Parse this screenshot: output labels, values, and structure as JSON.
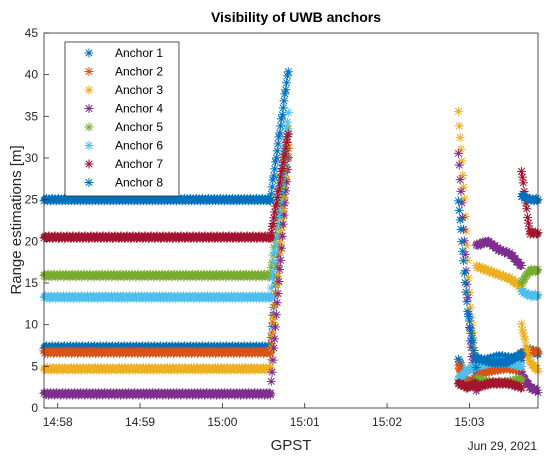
{
  "chart_data": {
    "type": "scatter",
    "title": "Visibility of UWB anchors",
    "xlabel": "GPST",
    "ylabel": "Range estimations [m]",
    "date_note": "Jun 29, 2021",
    "x_ticks": [
      "14:58",
      "14:59",
      "15:00",
      "15:01",
      "15:02",
      "15:03"
    ],
    "x_range": [
      "14:57:50",
      "15:03:50"
    ],
    "y_ticks": [
      0,
      5,
      10,
      15,
      20,
      25,
      30,
      35,
      40,
      45
    ],
    "ylim": [
      0,
      45
    ],
    "marker": "asterisk",
    "legend_position": "top-left",
    "grid": false,
    "series": [
      {
        "name": "Anchor 1",
        "color": "#0072BD",
        "segments": [
          {
            "start": "14:57:50",
            "end": "15:00:35",
            "values": [
              7.3,
              7.3
            ]
          },
          {
            "start": "15:00:35",
            "end": "15:00:48",
            "values": [
              7.3,
              33.0
            ]
          },
          {
            "start": "15:02:52",
            "end": "15:03:05",
            "values": [
              6.0,
              2.5,
              3.2
            ]
          },
          {
            "start": "15:03:05",
            "end": "15:03:38",
            "values": [
              5.5,
              5.8,
              6.2,
              6.0,
              5.8
            ]
          },
          {
            "start": "15:03:38",
            "end": "15:03:50",
            "values": [
              6.5,
              7.0,
              6.5
            ]
          }
        ]
      },
      {
        "name": "Anchor 2",
        "color": "#D95319",
        "segments": [
          {
            "start": "14:57:50",
            "end": "15:00:35",
            "values": [
              6.7,
              6.7
            ]
          },
          {
            "start": "15:00:35",
            "end": "15:00:48",
            "values": [
              6.7,
              31.0
            ]
          },
          {
            "start": "15:02:52",
            "end": "15:03:05",
            "values": [
              5.0,
              3.0,
              3.5
            ]
          },
          {
            "start": "15:03:05",
            "end": "15:03:38",
            "values": [
              4.0,
              4.5,
              4.8,
              4.5
            ]
          },
          {
            "start": "15:03:38",
            "end": "15:03:50",
            "values": [
              6.5,
              6.8,
              6.8
            ]
          }
        ]
      },
      {
        "name": "Anchor 3",
        "color": "#EDB120",
        "segments": [
          {
            "start": "14:57:50",
            "end": "15:00:35",
            "values": [
              4.7,
              4.7
            ]
          },
          {
            "start": "15:00:35",
            "end": "15:00:48",
            "values": [
              4.7,
              31.5
            ]
          },
          {
            "start": "15:02:52",
            "end": "15:03:05",
            "values": [
              35.5,
              25.0,
              12.0,
              5.0
            ]
          },
          {
            "start": "15:03:05",
            "end": "15:03:38",
            "values": [
              17.0,
              16.5,
              16.0,
              15.5,
              14.5
            ]
          },
          {
            "start": "15:03:38",
            "end": "15:03:50",
            "values": [
              10.0,
              5.5,
              4.5
            ]
          }
        ]
      },
      {
        "name": "Anchor 4",
        "color": "#7E2F8E",
        "segments": [
          {
            "start": "14:57:50",
            "end": "15:00:35",
            "values": [
              1.7,
              1.7
            ]
          },
          {
            "start": "15:00:35",
            "end": "15:00:48",
            "values": [
              1.7,
              30.0
            ]
          },
          {
            "start": "15:02:52",
            "end": "15:03:05",
            "values": [
              30.5,
              20.0,
              8.0,
              2.0
            ]
          },
          {
            "start": "15:03:05",
            "end": "15:03:38",
            "values": [
              19.5,
              20.0,
              19.0,
              18.5,
              17.0
            ]
          },
          {
            "start": "15:03:38",
            "end": "15:03:50",
            "values": [
              4.0,
              2.5,
              2.0
            ]
          }
        ]
      },
      {
        "name": "Anchor 5",
        "color": "#77AC30",
        "segments": [
          {
            "start": "14:57:50",
            "end": "15:00:35",
            "values": [
              15.9,
              15.9
            ]
          },
          {
            "start": "15:00:35",
            "end": "15:00:48",
            "values": [
              15.9,
              33.5
            ]
          },
          {
            "start": "15:02:52",
            "end": "15:03:05",
            "values": [
              3.0,
              2.5,
              3.0
            ]
          },
          {
            "start": "15:03:05",
            "end": "15:03:38",
            "values": [
              3.5,
              3.0,
              3.0,
              3.5
            ]
          },
          {
            "start": "15:03:38",
            "end": "15:03:50",
            "values": [
              15.0,
              16.5,
              16.5
            ]
          }
        ]
      },
      {
        "name": "Anchor 6",
        "color": "#4DBEEE",
        "segments": [
          {
            "start": "14:57:50",
            "end": "15:00:35",
            "values": [
              13.3,
              13.3
            ]
          },
          {
            "start": "15:00:35",
            "end": "15:00:48",
            "values": [
              13.3,
              35.5
            ]
          },
          {
            "start": "15:02:52",
            "end": "15:03:05",
            "values": [
              3.5,
              4.5,
              5.0
            ]
          },
          {
            "start": "15:03:05",
            "end": "15:03:38",
            "values": [
              5.0,
              5.5,
              5.5,
              5.0
            ]
          },
          {
            "start": "15:03:38",
            "end": "15:03:50",
            "values": [
              14.0,
              13.5,
              13.5
            ]
          }
        ]
      },
      {
        "name": "Anchor 7",
        "color": "#A2142F",
        "segments": [
          {
            "start": "14:57:50",
            "end": "15:00:35",
            "values": [
              20.5,
              20.5
            ]
          },
          {
            "start": "15:00:35",
            "end": "15:00:48",
            "values": [
              20.5,
              33.0
            ]
          },
          {
            "start": "15:02:52",
            "end": "15:03:05",
            "values": [
              3.0,
              2.5,
              3.0
            ]
          },
          {
            "start": "15:03:05",
            "end": "15:03:38",
            "values": [
              2.5,
              3.0,
              3.0,
              2.5
            ]
          },
          {
            "start": "15:03:38",
            "end": "15:03:50",
            "values": [
              28.5,
              21.0,
              21.0
            ]
          }
        ]
      },
      {
        "name": "Anchor 8",
        "color": "#0072BD",
        "segments": [
          {
            "start": "14:57:50",
            "end": "15:00:35",
            "values": [
              25.0,
              25.0
            ]
          },
          {
            "start": "15:00:35",
            "end": "15:00:48",
            "values": [
              25.0,
              40.5
            ]
          },
          {
            "start": "15:02:52",
            "end": "15:03:05",
            "values": [
              25.0,
              12.0,
              5.0
            ]
          },
          {
            "start": "15:03:05",
            "end": "15:03:38",
            "values": [
              6.0,
              5.5,
              5.5,
              6.5
            ]
          },
          {
            "start": "15:03:38",
            "end": "15:03:50",
            "values": [
              25.5,
              25.0,
              25.0
            ]
          }
        ]
      }
    ]
  }
}
